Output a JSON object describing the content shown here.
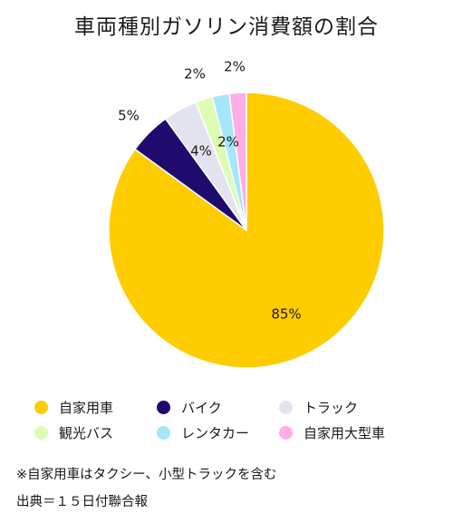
{
  "chart_data": {
    "type": "pie",
    "title": "車両種別ガソリン消費額の割合",
    "unit": "%",
    "start_angle": "12 o'clock, clockwise",
    "slices": [
      {
        "label": "自家用車",
        "value": 85,
        "value_label": "85%",
        "color": "#FFCC00"
      },
      {
        "label": "バイク",
        "value": 5,
        "value_label": "5%",
        "color": "#1F0A6E"
      },
      {
        "label": "トラック",
        "value": 4,
        "value_label": "4%",
        "color": "#E3E3F0"
      },
      {
        "label": "観光バス",
        "value": 2,
        "value_label": "2%",
        "color": "#DDFCB3"
      },
      {
        "label": "レンタカー",
        "value": 2,
        "value_label": "2%",
        "color": "#A6E6FA"
      },
      {
        "label": "自家用大型車",
        "value": 2,
        "value_label": "2%",
        "color": "#FFAEE6"
      }
    ],
    "legend_position": "bottom"
  },
  "notes": [
    "※自家用車はタクシー、小型トラックを含む",
    "出典＝１５日付聯合報"
  ]
}
